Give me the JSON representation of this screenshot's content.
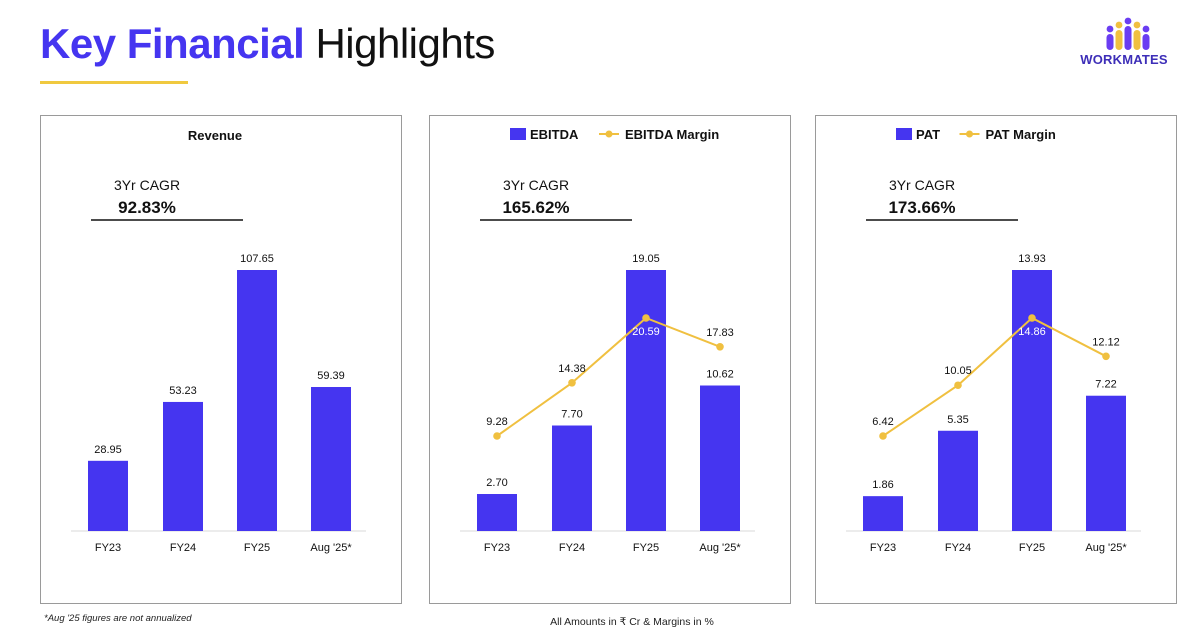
{
  "header": {
    "title_accent": "Key Financial",
    "title_rest": "Highlights",
    "logo_text": "WORKMATES"
  },
  "colors": {
    "bar": "#4535f0",
    "line": "#f0c040",
    "accent": "#4535f0"
  },
  "chart_data": [
    {
      "type": "bar",
      "title": "Revenue",
      "cagr_label": "3Yr CAGR",
      "cagr_value": "92.83%",
      "categories": [
        "FY23",
        "FY24",
        "FY25",
        "Aug '25*"
      ],
      "series": [
        {
          "values": [
            28.95,
            53.23,
            107.65,
            59.39
          ]
        }
      ],
      "value_labels": [
        "28.95",
        "53.23",
        "107.65",
        "59.39"
      ],
      "ylim": [
        0,
        107.65
      ],
      "legend": "none"
    },
    {
      "type": "bar",
      "categories": [
        "FY23",
        "FY24",
        "FY25",
        "Aug '25*"
      ],
      "cagr_label": "3Yr CAGR",
      "cagr_value": "165.62%",
      "series": [
        {
          "name": "EBITDA",
          "type": "bar",
          "values": [
            2.7,
            7.7,
            19.05,
            10.62
          ]
        },
        {
          "name": "EBITDA Margin",
          "type": "line",
          "values": [
            9.28,
            14.38,
            20.59,
            17.83
          ]
        }
      ],
      "bar_labels": [
        "2.70",
        "7.70",
        "19.05",
        "10.62"
      ],
      "line_labels": [
        "9.28",
        "14.38",
        "20.59",
        "17.83"
      ],
      "ylim": [
        0,
        19.05
      ],
      "legend": "top"
    },
    {
      "type": "bar",
      "categories": [
        "FY23",
        "FY24",
        "FY25",
        "Aug '25*"
      ],
      "cagr_label": "3Yr CAGR",
      "cagr_value": "173.66%",
      "series": [
        {
          "name": "PAT",
          "type": "bar",
          "values": [
            1.86,
            5.35,
            13.93,
            7.22
          ]
        },
        {
          "name": "PAT Margin",
          "type": "line",
          "values": [
            6.42,
            10.05,
            14.86,
            12.12
          ]
        }
      ],
      "bar_labels": [
        "1.86",
        "5.35",
        "13.93",
        "7.22"
      ],
      "line_labels": [
        "6.42",
        "10.05",
        "14.86",
        "12.12"
      ],
      "ylim": [
        0,
        13.93
      ],
      "legend": "top"
    }
  ],
  "footer": {
    "footnote": "*Aug '25 figures are not annualized",
    "units_note": "All Amounts in ₹ Cr & Margins in %"
  }
}
